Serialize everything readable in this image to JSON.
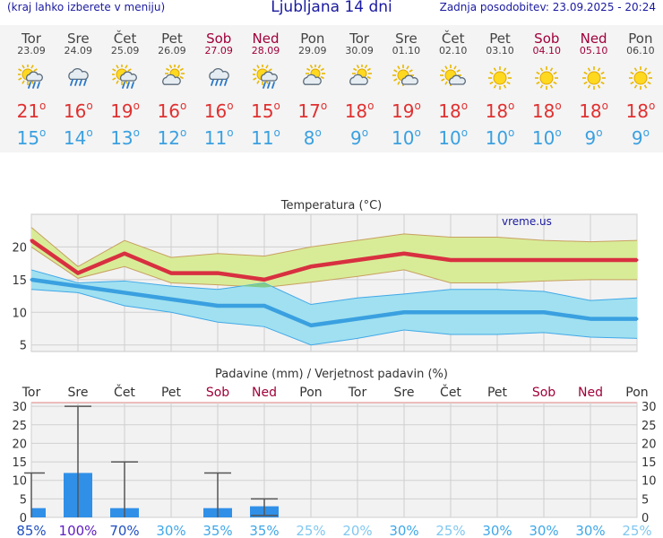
{
  "header": {
    "left_note": "(kraj lahko izberete v meniju)",
    "title": "Ljubljana 14 dni",
    "updated": "Zadnja posodobitev: 23.09.2025 - 20:24"
  },
  "days": [
    {
      "name": "Tor",
      "date": "23.09",
      "icon": "sun-cloud-rain-icon",
      "tmax": "21",
      "tmin": "15",
      "weekend": false
    },
    {
      "name": "Sre",
      "date": "24.09",
      "icon": "cloud-rain-icon",
      "tmax": "16",
      "tmin": "14",
      "weekend": false
    },
    {
      "name": "Čet",
      "date": "25.09",
      "icon": "sun-cloud-rain-icon",
      "tmax": "19",
      "tmin": "13",
      "weekend": false
    },
    {
      "name": "Pet",
      "date": "26.09",
      "icon": "cloud-sun-icon",
      "tmax": "16",
      "tmin": "12",
      "weekend": false
    },
    {
      "name": "Sob",
      "date": "27.09",
      "icon": "cloud-rain-icon",
      "tmax": "16",
      "tmin": "11",
      "weekend": true
    },
    {
      "name": "Ned",
      "date": "28.09",
      "icon": "sun-cloud-rain-icon",
      "tmax": "15",
      "tmin": "11",
      "weekend": true
    },
    {
      "name": "Pon",
      "date": "29.09",
      "icon": "cloud-sun-icon",
      "tmax": "17",
      "tmin": "8",
      "weekend": false
    },
    {
      "name": "Tor",
      "date": "30.09",
      "icon": "cloud-sun-icon",
      "tmax": "18",
      "tmin": "9",
      "weekend": false
    },
    {
      "name": "Sre",
      "date": "01.10",
      "icon": "sun-cloud-icon",
      "tmax": "19",
      "tmin": "10",
      "weekend": false
    },
    {
      "name": "Čet",
      "date": "02.10",
      "icon": "sun-cloud-icon",
      "tmax": "18",
      "tmin": "10",
      "weekend": false
    },
    {
      "name": "Pet",
      "date": "03.10",
      "icon": "sun-icon",
      "tmax": "18",
      "tmin": "10",
      "weekend": false
    },
    {
      "name": "Sob",
      "date": "04.10",
      "icon": "sun-icon",
      "tmax": "18",
      "tmin": "10",
      "weekend": true
    },
    {
      "name": "Ned",
      "date": "05.10",
      "icon": "sun-icon",
      "tmax": "18",
      "tmin": "9",
      "weekend": true
    },
    {
      "name": "Pon",
      "date": "06.10",
      "icon": "sun-icon",
      "tmax": "18",
      "tmin": "9",
      "weekend": false
    }
  ],
  "colors": {
    "max": "#d83040",
    "min": "#3aa0e0",
    "max_band": "#d8ec98",
    "min_band": "#a0e0f0",
    "overlap": "#80cc88",
    "bar": "#3090e8",
    "weekend": "#a0003a"
  },
  "chart_data": [
    {
      "type": "line",
      "title": "Temperatura (°C)",
      "watermark": "vreme.us",
      "x": [
        "23.09",
        "24.09",
        "25.09",
        "26.09",
        "27.09",
        "28.09",
        "29.09",
        "30.09",
        "01.10",
        "02.10",
        "03.10",
        "04.10",
        "05.10",
        "06.10"
      ],
      "ylim": [
        4,
        25
      ],
      "yticks": [
        5,
        10,
        15,
        20
      ],
      "series": [
        {
          "role": "max",
          "values": [
            21,
            16,
            19,
            16,
            16,
            15,
            17,
            18,
            19,
            18,
            18,
            18,
            18,
            18
          ],
          "upper": [
            23,
            17,
            21,
            18.4,
            19,
            18.6,
            20,
            21,
            22,
            21.5,
            21.5,
            21,
            20.8,
            21
          ],
          "lower": [
            20,
            15.2,
            17,
            14.5,
            14.2,
            13.8,
            14.6,
            15.5,
            16.5,
            14.5,
            14.5,
            14.8,
            15,
            15
          ]
        },
        {
          "role": "min",
          "values": [
            15,
            14,
            13,
            12,
            11,
            11,
            8,
            9,
            10,
            10,
            10,
            10,
            9,
            9
          ],
          "upper": [
            16.5,
            14.5,
            14.8,
            14,
            13.5,
            14.5,
            11.2,
            12.2,
            12.8,
            13.5,
            13.5,
            13.2,
            11.8,
            12.2
          ],
          "lower": [
            13.5,
            13,
            11,
            10,
            8.5,
            7.8,
            5,
            6,
            7.3,
            6.6,
            6.6,
            6.9,
            6.2,
            6
          ]
        }
      ],
      "grid": true
    },
    {
      "type": "bar",
      "title": "Padavine (mm) / Verjetnost padavin (%)",
      "categories": [
        "Tor",
        "Sre",
        "Čet",
        "Pet",
        "Sob",
        "Ned",
        "Pon",
        "Tor",
        "Sre",
        "Čet",
        "Pet",
        "Sob",
        "Ned",
        "Pon"
      ],
      "weekend": [
        false,
        false,
        false,
        false,
        true,
        true,
        false,
        false,
        false,
        false,
        false,
        true,
        true,
        false
      ],
      "values": [
        2.5,
        12,
        2.5,
        0,
        2.5,
        3,
        0,
        0,
        0,
        0,
        0,
        0,
        0,
        0
      ],
      "error_max": [
        12,
        30,
        15,
        0,
        12,
        5,
        0,
        0,
        0,
        0,
        0,
        0,
        0,
        0
      ],
      "error_min": [
        0,
        0,
        0,
        0,
        0,
        0.5,
        0,
        0,
        0,
        0,
        0,
        0,
        0,
        0
      ],
      "probability": [
        "85%",
        "100%",
        "70%",
        "30%",
        "35%",
        "35%",
        "25%",
        "20%",
        "30%",
        "25%",
        "30%",
        "30%",
        "30%",
        "25%"
      ],
      "ylim": [
        0,
        31
      ],
      "yticks": [
        0,
        5,
        10,
        15,
        20,
        25,
        30
      ],
      "grid": true
    }
  ]
}
